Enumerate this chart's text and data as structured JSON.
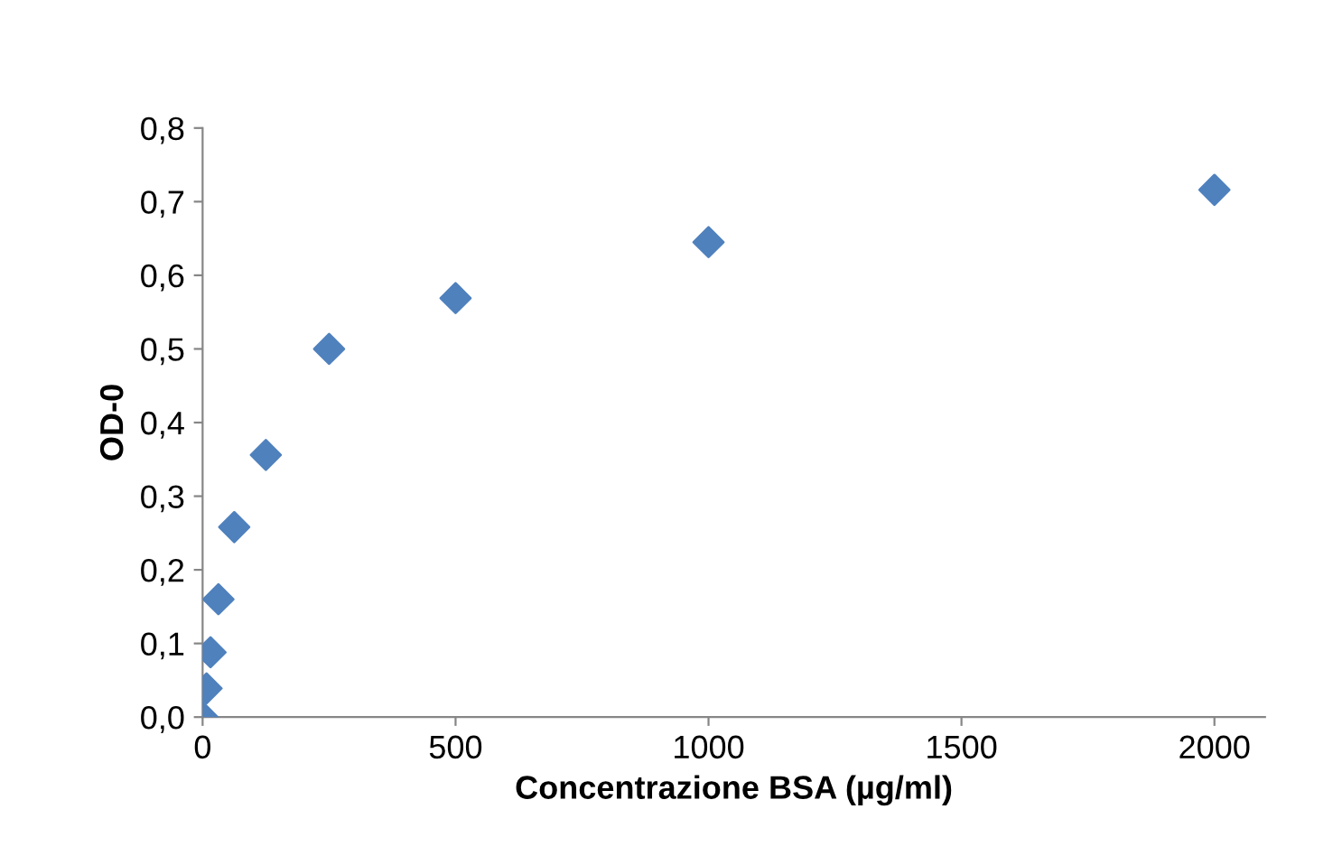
{
  "chart_data": {
    "type": "scatter",
    "xlabel": "Concentrazione BSA (µg/ml)",
    "ylabel": "OD-0",
    "x": [
      0,
      7.8,
      15.6,
      31.25,
      62.5,
      125,
      250,
      500,
      1000,
      2000
    ],
    "series": [
      {
        "color": "#4f81bd",
        "values": [
          0,
          0.039,
          0.088,
          0.16,
          0.258,
          0.356,
          0.5,
          0.569,
          0.645,
          0.716
        ]
      }
    ],
    "marker": "diamond",
    "xlim": [
      0,
      2100
    ],
    "xticks": [
      0,
      500,
      1000,
      1500,
      2000
    ],
    "ylim": [
      0,
      0.8
    ],
    "yticks": [
      {
        "value": 0,
        "label": "0,0"
      },
      {
        "value": 0.1,
        "label": "0,1"
      },
      {
        "value": 0.2,
        "label": "0,2"
      },
      {
        "value": 0.3,
        "label": "0,3"
      },
      {
        "value": 0.4,
        "label": "0,4"
      },
      {
        "value": 0.5,
        "label": "0,5"
      },
      {
        "value": 0.6,
        "label": "0,6"
      },
      {
        "value": 0.7,
        "label": "0,7"
      },
      {
        "value": 0.8,
        "label": "0,8"
      }
    ],
    "grid": false,
    "legend": false
  }
}
